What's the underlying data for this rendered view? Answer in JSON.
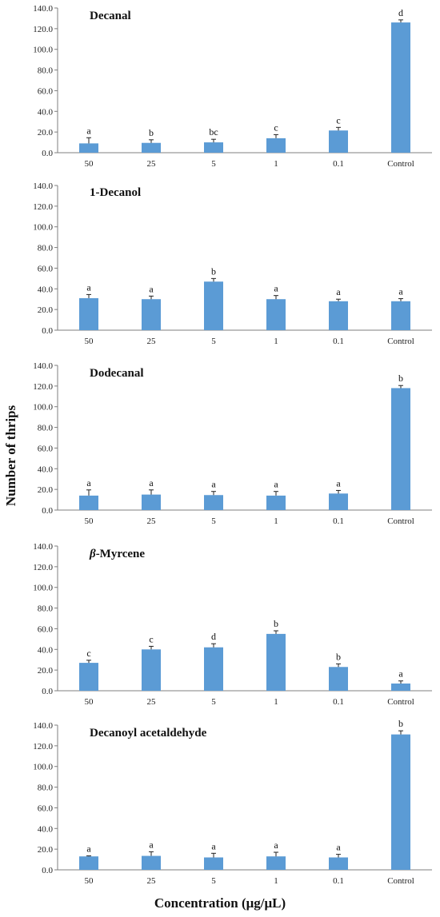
{
  "figure": {
    "ylabel": "Number of thrips",
    "xlabel": "Concentration (μg/μL)",
    "bar_color": "#5b9bd5",
    "axis_color": "#7f7f7f"
  },
  "chart_data": [
    {
      "type": "bar",
      "title": "Decanal",
      "title_italic_prefix": "",
      "categories": [
        "50",
        "25",
        "5",
        "1",
        "0.1",
        "Control"
      ],
      "values": [
        9,
        9.5,
        10,
        14,
        21.5,
        126
      ],
      "errors": [
        5.5,
        3,
        3,
        3.5,
        3,
        2.5
      ],
      "letters": [
        "a",
        "b",
        "bc",
        "c",
        "c",
        "d"
      ],
      "ylim": [
        0,
        140
      ],
      "yticks": [
        "0.0",
        "20.0",
        "40.0",
        "60.0",
        "80.0",
        "100.0",
        "120.0",
        "140.0"
      ]
    },
    {
      "type": "bar",
      "title": "1-Decanol",
      "title_italic_prefix": "",
      "categories": [
        "50",
        "25",
        "5",
        "1",
        "0.1",
        "Control"
      ],
      "values": [
        31,
        30,
        47,
        30,
        28,
        28
      ],
      "errors": [
        3.5,
        3,
        3,
        3.5,
        2,
        2.5
      ],
      "letters": [
        "a",
        "a",
        "b",
        "a",
        "a",
        "a"
      ],
      "ylim": [
        0,
        140
      ],
      "yticks": [
        "0.0",
        "20.0",
        "40.0",
        "60.0",
        "80.0",
        "100.0",
        "120.0",
        "140.0"
      ]
    },
    {
      "type": "bar",
      "title": "Dodecanal",
      "title_italic_prefix": "",
      "categories": [
        "50",
        "25",
        "5",
        "1",
        "0.1",
        "Control"
      ],
      "values": [
        14,
        15,
        14.5,
        14,
        16,
        118
      ],
      "errors": [
        5.5,
        4.5,
        3.5,
        4,
        3,
        2.5
      ],
      "letters": [
        "a",
        "a",
        "a",
        "a",
        "a",
        "b"
      ],
      "ylim": [
        0,
        140
      ],
      "yticks": [
        "0.0",
        "20.0",
        "40.0",
        "60.0",
        "80.0",
        "100.0",
        "120.0",
        "140.0"
      ]
    },
    {
      "type": "bar",
      "title": "-Myrcene",
      "title_italic_prefix": "β",
      "categories": [
        "50",
        "25",
        "5",
        "1",
        "0.1",
        "Control"
      ],
      "values": [
        27,
        40,
        42,
        55,
        23,
        7
      ],
      "errors": [
        2.5,
        3,
        3.5,
        3,
        3,
        2.5
      ],
      "letters": [
        "c",
        "c",
        "d",
        "b",
        "b",
        "a"
      ],
      "ylim": [
        0,
        140
      ],
      "yticks": [
        "0.0",
        "20.0",
        "40.0",
        "60.0",
        "80.0",
        "100.0",
        "120.0",
        "140.0"
      ]
    },
    {
      "type": "bar",
      "title": "Decanoyl acetaldehyde",
      "title_italic_prefix": "",
      "categories": [
        "50",
        "25",
        "5",
        "1",
        "0.1",
        "Control"
      ],
      "values": [
        13,
        13.5,
        12,
        13,
        12,
        131
      ],
      "errors": [
        0.5,
        4,
        4,
        4,
        3,
        3.5
      ],
      "letters": [
        "a",
        "a",
        "a",
        "a",
        "a",
        "b"
      ],
      "ylim": [
        0,
        140
      ],
      "yticks": [
        "0.0",
        "20.0",
        "40.0",
        "60.0",
        "80.0",
        "100.0",
        "120.0",
        "140.0"
      ]
    }
  ]
}
